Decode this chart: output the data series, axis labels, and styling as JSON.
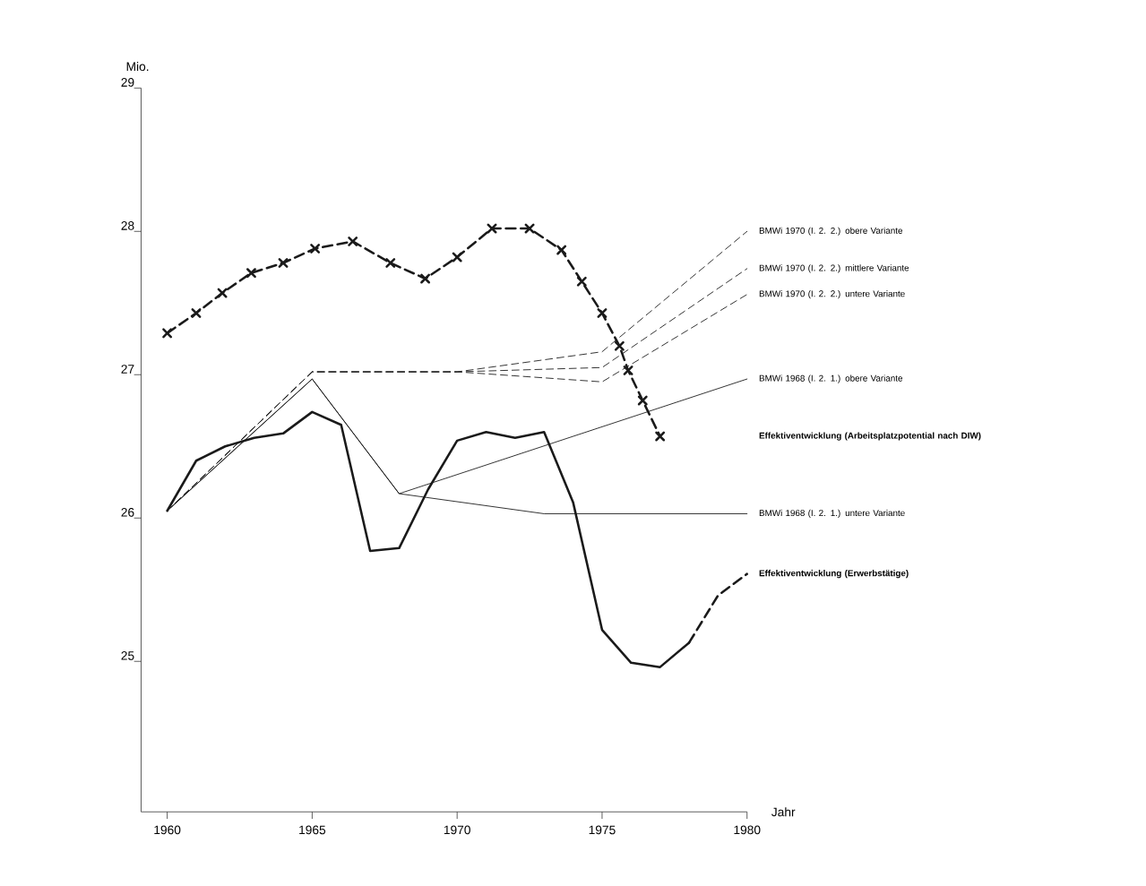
{
  "chart_data": {
    "type": "line",
    "ylabel": "Mio.",
    "xlabel": "Jahr",
    "xlim": [
      1959.1,
      1980
    ],
    "xticks": [
      1960,
      1965,
      1970,
      1975,
      1980
    ],
    "ylim": [
      23.95,
      29
    ],
    "yticks": [
      25,
      26,
      27,
      28,
      29
    ],
    "grid": false,
    "legend": false,
    "series": [
      {
        "name": "Effektiventwicklung (Arbeitsplatzpotential nach DIW)",
        "color": "#1a1a1a",
        "line_style": "dashed",
        "marker": "cross",
        "x": [
          1960,
          1961,
          1961.9,
          1962.9,
          1964,
          1965.1,
          1966.4,
          1967.7,
          1968.9,
          1970,
          1971.2,
          1972.5,
          1973.6,
          1974.3,
          1975,
          1975.6,
          1975.9,
          1976.4,
          1977
        ],
        "values": [
          27.29,
          27.43,
          27.57,
          27.71,
          27.78,
          27.88,
          27.93,
          27.78,
          27.67,
          27.82,
          28.02,
          28.02,
          27.87,
          27.65,
          27.43,
          27.2,
          27.03,
          26.82,
          26.57
        ]
      },
      {
        "color": "#1a1a1a",
        "line_style": "solid",
        "marker": "none",
        "x": [
          1960,
          1961,
          1962,
          1963,
          1964,
          1965,
          1966,
          1967,
          1968,
          1969,
          1970,
          1971,
          1972,
          1973,
          1974,
          1975,
          1976,
          1977,
          1978
        ],
        "values": [
          26.05,
          26.4,
          26.5,
          26.56,
          26.59,
          26.74,
          26.65,
          25.77,
          25.79,
          26.2,
          26.54,
          26.6,
          26.56,
          26.6,
          26.11,
          25.22,
          24.99,
          24.96,
          25.13
        ]
      },
      {
        "name": "Effektiventwicklung (Erwerbstätige)",
        "color": "#1a1a1a",
        "line_style": "dashed",
        "marker": "none",
        "x": [
          1978,
          1979,
          1980
        ],
        "values": [
          25.13,
          25.46,
          25.61
        ]
      },
      {
        "name": "BMWi 1970 (I. 2. 2.) obere Variante",
        "color": "#1a1a1a",
        "line_style": "dashed",
        "marker": "none",
        "x": [
          1960,
          1965,
          1970,
          1975,
          1980
        ],
        "values": [
          26.05,
          27.02,
          27.02,
          27.16,
          28.0
        ]
      },
      {
        "name": "BMWi 1970 (I. 2. 2.) mittlere Variante",
        "color": "#1a1a1a",
        "line_style": "dashed",
        "marker": "none",
        "x": [
          1960,
          1965,
          1970,
          1975,
          1980
        ],
        "values": [
          26.05,
          27.02,
          27.02,
          27.05,
          27.74
        ]
      },
      {
        "name": "BMWi 1970 (I. 2. 2.) untere Variante",
        "color": "#1a1a1a",
        "line_style": "dashed",
        "marker": "none",
        "x": [
          1960,
          1965,
          1970,
          1975,
          1980
        ],
        "values": [
          26.05,
          27.02,
          27.02,
          26.95,
          27.56
        ]
      },
      {
        "name": "BMWi 1968 (I. 2. 1.) obere Variante",
        "color": "#1a1a1a",
        "line_style": "solid",
        "marker": "none",
        "x": [
          1960,
          1965,
          1968,
          1980
        ],
        "values": [
          26.05,
          26.97,
          26.17,
          26.97
        ]
      },
      {
        "name": "BMWi 1968 (I. 2. 1.) untere Variante",
        "color": "#1a1a1a",
        "line_style": "solid",
        "marker": "none",
        "x": [
          1960,
          1965,
          1968,
          1973,
          1980
        ],
        "values": [
          26.05,
          26.97,
          26.17,
          26.03,
          26.03
        ]
      }
    ]
  }
}
